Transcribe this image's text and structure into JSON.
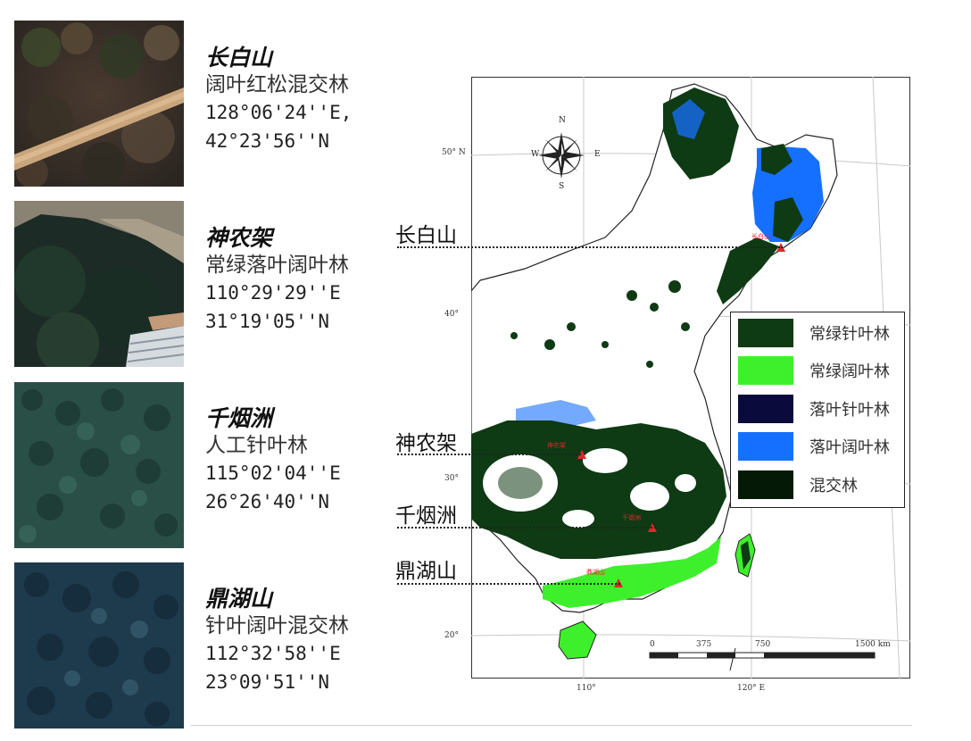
{
  "sites": [
    {
      "name": "长白山",
      "type": "阔叶红松混交林",
      "lon": "128°06'24''E,",
      "lat": "42°23'56''N"
    },
    {
      "name": "神农架",
      "type": "常绿落叶阔叶林",
      "lon": "110°29'29''E",
      "lat": "31°19'05''N"
    },
    {
      "name": "千烟洲",
      "type": "人工针叶林",
      "lon": "115°02'04''E",
      "lat": "26°26'40''N"
    },
    {
      "name": "鼎湖山",
      "type": "针叶阔叶混交林",
      "lon": "112°32'58''E",
      "lat": "23°09'51''N"
    }
  ],
  "callouts": [
    "长白山",
    "神农架",
    "千烟洲",
    "鼎湖山"
  ],
  "map_markers": [
    "长白山",
    "神农架",
    "千烟洲",
    "鼎湖山"
  ],
  "legend": [
    {
      "label": "常绿针叶林",
      "color": "#0e3a14"
    },
    {
      "label": "常绿阔叶林",
      "color": "#3ef02c"
    },
    {
      "label": "落叶针叶林",
      "color": "#0a0a3c"
    },
    {
      "label": "落叶阔叶林",
      "color": "#1670ff"
    },
    {
      "label": "混交林",
      "color": "#041a07"
    }
  ],
  "compass": {
    "n": "N",
    "s": "S",
    "e": "E",
    "w": "W"
  },
  "lat_labels": [
    "50° N",
    "40°",
    "30°",
    "20°"
  ],
  "lon_labels": [
    "110°",
    "120° E"
  ],
  "scale_bar": {
    "ticks": [
      "0",
      "375",
      "750",
      "1500 km"
    ]
  }
}
